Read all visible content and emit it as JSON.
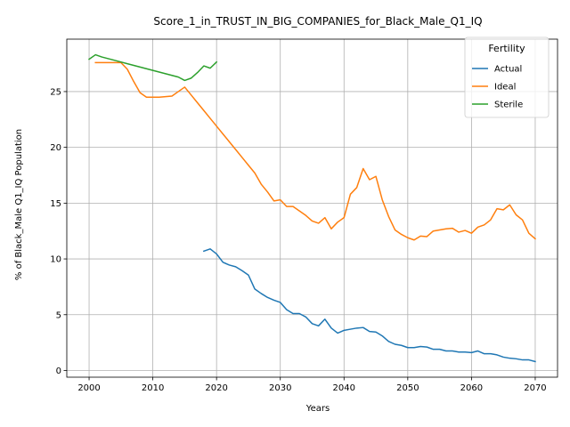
{
  "chart_data": {
    "type": "line",
    "title": "Score_1_in_TRUST_IN_BIG_COMPANIES_for_Black_Male_Q1_IQ",
    "xlabel": "Years",
    "ylabel": "% of Black_Male Q1_IQ Population",
    "xlim": [
      1996.5,
      2073.5
    ],
    "ylim": [
      -0.6,
      29.7
    ],
    "xticks": [
      2000,
      2010,
      2020,
      2030,
      2040,
      2050,
      2060,
      2070
    ],
    "yticks": [
      0,
      5,
      10,
      15,
      20,
      25
    ],
    "grid": true,
    "legend": {
      "title": "Fertility",
      "placement": "top-right"
    },
    "series": [
      {
        "name": "Actual",
        "color": "#1f77b4",
        "x": [
          2018,
          2019,
          2020,
          2021,
          2022,
          2023,
          2024,
          2025,
          2026,
          2027,
          2028,
          2029,
          2030,
          2031,
          2032,
          2033,
          2034,
          2035,
          2036,
          2037,
          2038,
          2039,
          2040,
          2041,
          2042,
          2043,
          2044,
          2045,
          2046,
          2047,
          2048,
          2049,
          2050,
          2051,
          2052,
          2053,
          2054,
          2055,
          2056,
          2057,
          2058,
          2059,
          2060,
          2061,
          2062,
          2063,
          2064,
          2065,
          2066,
          2067,
          2068,
          2069,
          2070
        ],
        "y": [
          10.7,
          10.9,
          10.45,
          9.7,
          9.45,
          9.3,
          8.95,
          8.55,
          7.3,
          6.9,
          6.55,
          6.3,
          6.1,
          5.45,
          5.1,
          5.1,
          4.8,
          4.2,
          4.0,
          4.6,
          3.8,
          3.35,
          3.6,
          3.7,
          3.8,
          3.85,
          3.5,
          3.45,
          3.1,
          2.6,
          2.35,
          2.25,
          2.05,
          2.05,
          2.15,
          2.1,
          1.9,
          1.9,
          1.75,
          1.75,
          1.65,
          1.65,
          1.6,
          1.75,
          1.5,
          1.5,
          1.4,
          1.2,
          1.1,
          1.05,
          0.95,
          0.95,
          0.8
        ]
      },
      {
        "name": "Ideal",
        "color": "#ff7f0e",
        "x": [
          2001,
          2002,
          2003,
          2004,
          2005,
          2006,
          2007,
          2008,
          2009,
          2010,
          2011,
          2012,
          2013,
          2014,
          2015,
          2016,
          2017,
          2018,
          2019,
          2020,
          2021,
          2022,
          2023,
          2024,
          2025,
          2026,
          2027,
          2028,
          2029,
          2030,
          2031,
          2032,
          2033,
          2034,
          2035,
          2036,
          2037,
          2038,
          2039,
          2040,
          2041,
          2042,
          2043,
          2044,
          2045,
          2046,
          2047,
          2048,
          2049,
          2050,
          2051,
          2052,
          2053,
          2054,
          2055,
          2056,
          2057,
          2058,
          2059,
          2060,
          2061,
          2062,
          2063,
          2064,
          2065,
          2066,
          2067,
          2068,
          2069,
          2070
        ],
        "y": [
          27.6,
          27.6,
          27.6,
          27.6,
          27.6,
          27.0,
          25.9,
          24.9,
          24.5,
          24.5,
          24.5,
          24.55,
          24.6,
          25.0,
          25.4,
          24.7,
          24.0,
          23.3,
          22.6,
          21.9,
          21.2,
          20.5,
          19.8,
          19.1,
          18.4,
          17.7,
          16.7,
          16.0,
          15.2,
          15.3,
          14.7,
          14.7,
          14.3,
          13.9,
          13.4,
          13.2,
          13.7,
          12.7,
          13.3,
          13.7,
          15.8,
          16.4,
          18.1,
          17.1,
          17.4,
          15.3,
          13.8,
          12.6,
          12.2,
          11.9,
          11.7,
          12.05,
          12.0,
          12.5,
          12.6,
          12.7,
          12.75,
          12.4,
          12.55,
          12.3,
          12.85,
          13.05,
          13.5,
          14.5,
          14.4,
          14.85,
          13.95,
          13.5,
          12.3,
          11.8
        ]
      },
      {
        "name": "Sterile",
        "color": "#2ca02c",
        "x": [
          2000,
          2001,
          2002,
          2003,
          2004,
          2005,
          2006,
          2007,
          2008,
          2009,
          2010,
          2011,
          2012,
          2013,
          2014,
          2015,
          2016,
          2017,
          2018,
          2019,
          2020
        ],
        "y": [
          27.9,
          28.3,
          28.1,
          27.95,
          27.8,
          27.65,
          27.5,
          27.35,
          27.2,
          27.05,
          26.9,
          26.75,
          26.6,
          26.45,
          26.3,
          26.0,
          26.2,
          26.7,
          27.3,
          27.1,
          27.65
        ]
      }
    ]
  }
}
